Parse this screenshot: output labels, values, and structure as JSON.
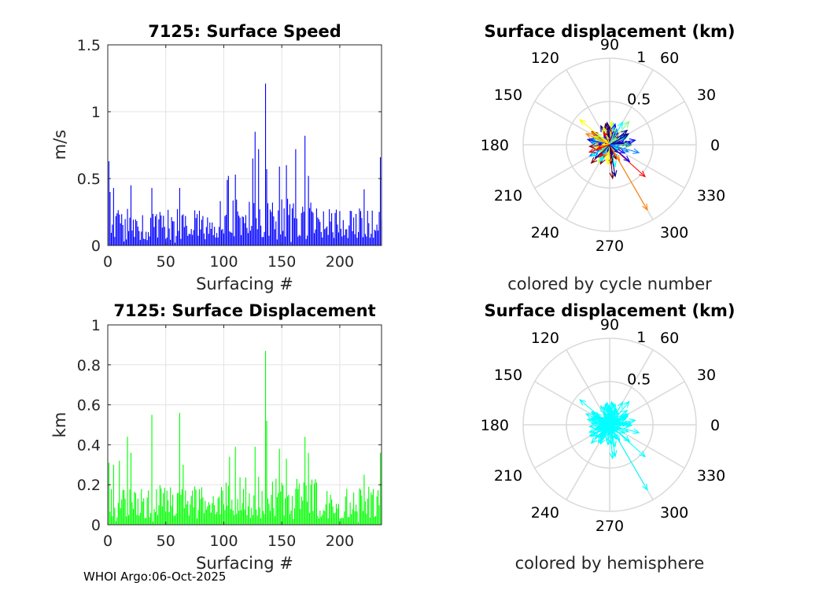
{
  "footer": "WHOI Argo:06-Oct-2025",
  "colors": {
    "speed_bars": "#0000ff",
    "disp_bars": "#00ff00",
    "grid": "#d9d9d9",
    "hemisphere": "#00ffff",
    "cycle_colormap": [
      "#00008f",
      "#0000ff",
      "#0080ff",
      "#00ffff",
      "#80ff80",
      "#ffff00",
      "#ff8000",
      "#ff0000",
      "#800000"
    ]
  },
  "chart_data": [
    {
      "id": "speed",
      "type": "bar",
      "title": "7125: Surface Speed",
      "xlabel": "Surfacing #",
      "ylabel": "m/s",
      "xlim": [
        0,
        236
      ],
      "ylim": [
        0,
        1.5
      ],
      "xticks": [
        "0",
        "50",
        "100",
        "150",
        "200"
      ],
      "xtick_values": [
        0,
        50,
        100,
        150,
        200
      ],
      "yticks": [
        "0",
        "0.5",
        "1",
        "1.5"
      ],
      "ytick_values": [
        0,
        0.5,
        1,
        1.5
      ],
      "grid": true,
      "n_bars": 236,
      "notable_values": [
        [
          1,
          0.63
        ],
        [
          2,
          0.4
        ],
        [
          5,
          0.43
        ],
        [
          20,
          0.45
        ],
        [
          38,
          0.43
        ],
        [
          62,
          0.43
        ],
        [
          103,
          0.49
        ],
        [
          104,
          0.52
        ],
        [
          110,
          0.53
        ],
        [
          125,
          0.65
        ],
        [
          127,
          0.85
        ],
        [
          130,
          0.72
        ],
        [
          136,
          1.21
        ],
        [
          137,
          0.57
        ],
        [
          148,
          0.59
        ],
        [
          154,
          0.6
        ],
        [
          162,
          0.72
        ],
        [
          170,
          0.82
        ],
        [
          173,
          0.52
        ],
        [
          221,
          0.42
        ],
        [
          235,
          0.66
        ]
      ]
    },
    {
      "id": "displacement",
      "type": "bar",
      "title": "7125: Surface Displacement",
      "xlabel": "Surfacing #",
      "ylabel": "km",
      "xlim": [
        0,
        236
      ],
      "ylim": [
        0,
        1
      ],
      "xticks": [
        "0",
        "50",
        "100",
        "150",
        "200"
      ],
      "xtick_values": [
        0,
        50,
        100,
        150,
        200
      ],
      "yticks": [
        "0",
        "0.2",
        "0.4",
        "0.6",
        "0.8",
        "1"
      ],
      "ytick_values": [
        0,
        0.2,
        0.4,
        0.6,
        0.8,
        1
      ],
      "grid": true,
      "n_bars": 236,
      "notable_values": [
        [
          1,
          0.31
        ],
        [
          5,
          0.3
        ],
        [
          10,
          0.32
        ],
        [
          17,
          0.44
        ],
        [
          20,
          0.36
        ],
        [
          38,
          0.55
        ],
        [
          62,
          0.56
        ],
        [
          65,
          0.3
        ],
        [
          105,
          0.34
        ],
        [
          110,
          0.39
        ],
        [
          127,
          0.39
        ],
        [
          130,
          0.24
        ],
        [
          136,
          0.87
        ],
        [
          137,
          0.52
        ],
        [
          148,
          0.38
        ],
        [
          154,
          0.33
        ],
        [
          170,
          0.44
        ],
        [
          173,
          0.36
        ],
        [
          221,
          0.25
        ],
        [
          235,
          0.36
        ]
      ]
    },
    {
      "id": "polar_cycle",
      "type": "polar-quiver",
      "title": "Surface displacement (km)",
      "caption": "colored by cycle number",
      "rlim": [
        0,
        1
      ],
      "rticks": [
        "0.5",
        "1"
      ],
      "rtick_values": [
        0.5,
        1
      ],
      "angle_labels": [
        "0",
        "30",
        "60",
        "90",
        "120",
        "150",
        "180",
        "210",
        "240",
        "270",
        "300",
        "330"
      ],
      "color_mode": "cycle",
      "notable_vectors": [
        [
          300,
          0.87
        ],
        [
          318,
          0.55
        ],
        [
          275,
          0.39
        ],
        [
          280,
          0.37
        ],
        [
          320,
          0.3
        ],
        [
          345,
          0.35
        ],
        [
          60,
          0.3
        ],
        [
          50,
          0.35
        ],
        [
          140,
          0.45
        ],
        [
          155,
          0.3
        ],
        [
          200,
          0.25
        ],
        [
          225,
          0.3
        ],
        [
          30,
          0.25
        ],
        [
          10,
          0.3
        ],
        [
          0,
          0.25
        ]
      ]
    },
    {
      "id": "polar_hemisphere",
      "type": "polar-quiver",
      "title": "Surface displacement (km)",
      "caption": "colored by hemisphere",
      "rlim": [
        0,
        1
      ],
      "rticks": [
        "0.5",
        "1"
      ],
      "rtick_values": [
        0.5,
        1
      ],
      "angle_labels": [
        "0",
        "30",
        "60",
        "90",
        "120",
        "150",
        "180",
        "210",
        "240",
        "270",
        "300",
        "330"
      ],
      "color_mode": "hemisphere",
      "notable_vectors": [
        [
          300,
          0.87
        ],
        [
          318,
          0.55
        ],
        [
          275,
          0.39
        ],
        [
          280,
          0.37
        ],
        [
          320,
          0.3
        ],
        [
          345,
          0.35
        ],
        [
          60,
          0.3
        ],
        [
          50,
          0.35
        ],
        [
          140,
          0.45
        ],
        [
          155,
          0.3
        ],
        [
          200,
          0.25
        ],
        [
          225,
          0.3
        ],
        [
          30,
          0.25
        ],
        [
          10,
          0.3
        ],
        [
          0,
          0.25
        ]
      ]
    }
  ]
}
